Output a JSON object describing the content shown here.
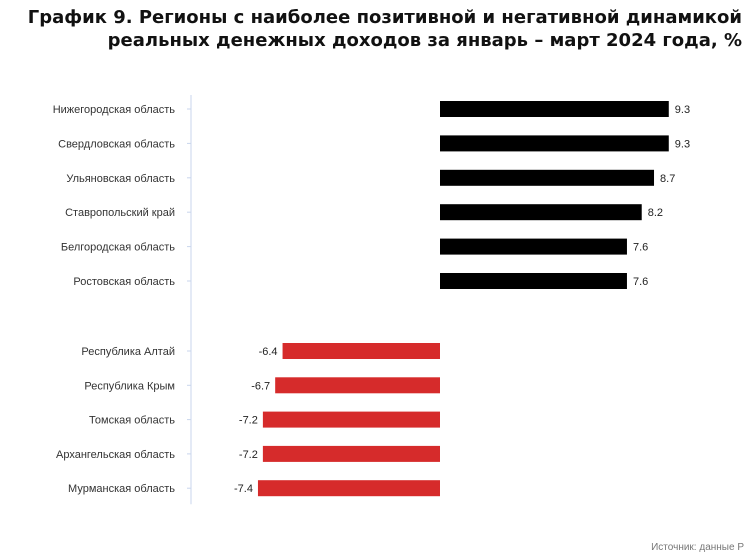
{
  "title": {
    "line1": "График 9. Регионы с наиболее позитивной и негативной динамикой",
    "line2": "реальных денежных доходов за январь – март 2024 года, %"
  },
  "source": "Источник: данные Р",
  "colors": {
    "positive": "#000000",
    "negative": "#d62b2b",
    "axis": "#c9d6ec",
    "label": "#333333"
  },
  "chart_data": {
    "type": "bar",
    "orientation": "horizontal",
    "title": "График 9. Регионы с наиболее позитивной и негативной динамикой реальных денежных доходов за январь – март 2024 года, %",
    "categories": [
      "Нижегородская область",
      "Свердловская область",
      "Ульяновская область",
      "Ставропольский край",
      "Белгородская область",
      "Ростовская область",
      "Республика Алтай",
      "Республика Крым",
      "Томская область",
      "Архангельская область",
      "Мурманская область"
    ],
    "values": [
      9.3,
      9.3,
      8.7,
      8.2,
      7.6,
      7.6,
      -6.4,
      -6.7,
      -7.2,
      -7.2,
      -7.4
    ],
    "labels": [
      "9.3",
      "9.3",
      "8.7",
      "8.2",
      "7.6",
      "7.6",
      "-6.4",
      "-6.7",
      "-7.2",
      "-7.2",
      "-7.4"
    ],
    "groups": [
      "positive",
      "positive",
      "positive",
      "positive",
      "positive",
      "positive",
      "negative",
      "negative",
      "negative",
      "negative",
      "negative"
    ],
    "xlim": [
      -7.4,
      9.3
    ],
    "xlabel": "",
    "ylabel": ""
  }
}
